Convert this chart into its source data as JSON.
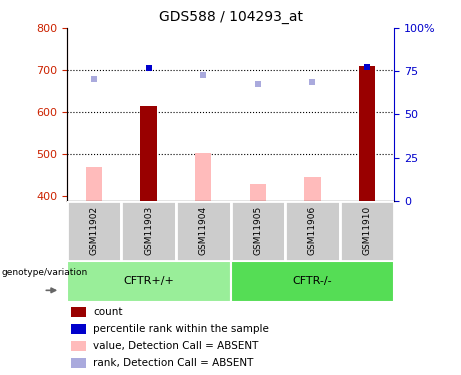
{
  "title": "GDS588 / 104293_at",
  "samples": [
    "GSM11902",
    "GSM11903",
    "GSM11904",
    "GSM11905",
    "GSM11906",
    "GSM11910"
  ],
  "count_values": [
    null,
    615,
    null,
    null,
    null,
    710
  ],
  "count_color": "#990000",
  "rank_values": [
    680,
    705,
    688,
    668,
    672,
    707
  ],
  "rank_color_present": "#0000cc",
  "rank_color_absent": "#aaaadd",
  "rank_absent": [
    true,
    false,
    true,
    true,
    true,
    false
  ],
  "value_absent": [
    470,
    null,
    504,
    430,
    445,
    null
  ],
  "value_color_absent": "#ffbbbb",
  "ylim_left": [
    390,
    800
  ],
  "ylim_right": [
    0,
    100
  ],
  "yticks_left": [
    400,
    500,
    600,
    700,
    800
  ],
  "yticks_right": [
    0,
    25,
    50,
    75,
    100
  ],
  "hlines": [
    500,
    600,
    700
  ],
  "cftr_plus_color": "#99ee99",
  "cftr_minus_color": "#55dd55",
  "sample_bg_color": "#cccccc",
  "sample_border_color": "#ffffff",
  "legend_items": [
    {
      "label": "count",
      "color": "#990000"
    },
    {
      "label": "percentile rank within the sample",
      "color": "#0000cc"
    },
    {
      "label": "value, Detection Call = ABSENT",
      "color": "#ffbbbb"
    },
    {
      "label": "rank, Detection Call = ABSENT",
      "color": "#aaaadd"
    }
  ],
  "left_axis_color": "#cc2200",
  "right_axis_color": "#0000cc",
  "title_fontsize": 10,
  "tick_fontsize": 8,
  "legend_fontsize": 7.5,
  "bar_width": 0.3,
  "marker_size": 5
}
